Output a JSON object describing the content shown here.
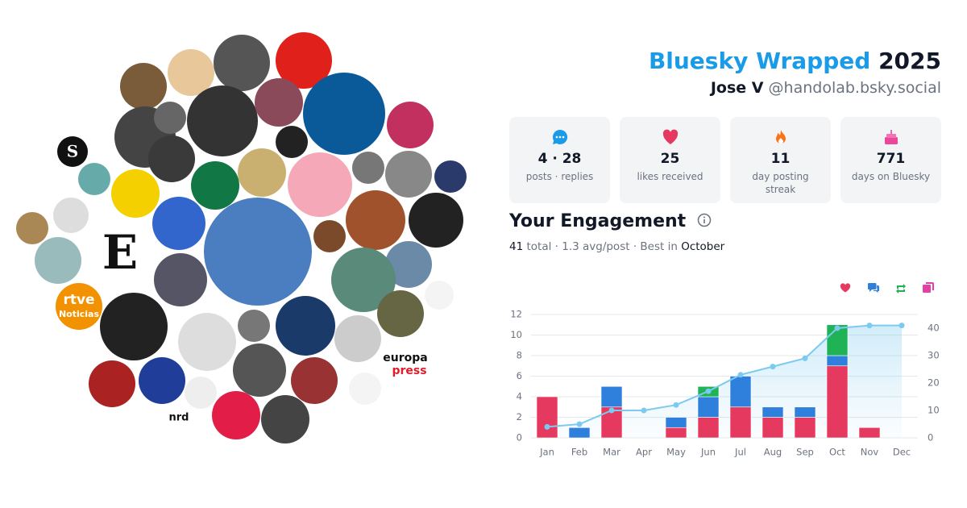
{
  "header": {
    "title": "Bluesky Wrapped",
    "year": "2025",
    "name": "Jose V",
    "handle": "@handolab.bsky.social"
  },
  "stats": [
    {
      "value": "4 · 28",
      "label": "posts · replies"
    },
    {
      "value": "25",
      "label": "likes received"
    },
    {
      "value": "11",
      "label": "day posting streak"
    },
    {
      "value": "771",
      "label": "days on Bluesky"
    }
  ],
  "engagement": {
    "title": "Your Engagement",
    "total": "41",
    "total_label": "total · 1.3 avg/post · Best in",
    "best": "October"
  },
  "logos": [
    "S",
    "E",
    "rtve",
    "Noticias",
    "europa",
    "press",
    "nrd"
  ],
  "chart_data": {
    "type": "bar",
    "stacked": true,
    "categories": [
      "Jan",
      "Feb",
      "Mar",
      "Apr",
      "May",
      "Jun",
      "Jul",
      "Aug",
      "Sep",
      "Oct",
      "Nov",
      "Dec"
    ],
    "series": [
      {
        "color": "#e5395f",
        "values": [
          4,
          0,
          3,
          0,
          1,
          2,
          3,
          2,
          2,
          7,
          1,
          0
        ]
      },
      {
        "color": "#2f80dd",
        "values": [
          0,
          1,
          2,
          0,
          1,
          2,
          3,
          1,
          1,
          1,
          0,
          0
        ]
      },
      {
        "color": "#1fb356",
        "values": [
          0,
          0,
          0,
          0,
          0,
          1,
          0,
          0,
          0,
          3,
          0,
          0
        ]
      },
      {
        "color": "#e33fa6",
        "values": [
          0,
          0,
          0,
          0,
          0,
          0,
          0,
          0,
          0,
          0,
          0,
          0
        ]
      },
      {
        "type": "line",
        "axis": "y2",
        "color": "#7ccaf0",
        "values": [
          4,
          5,
          10,
          10,
          12,
          17,
          23,
          26,
          29,
          40,
          41,
          41
        ]
      }
    ],
    "ylim": [
      0,
      12
    ],
    "yticks": [
      0,
      2,
      4,
      6,
      8,
      10,
      12
    ],
    "y2lim": [
      0,
      45
    ],
    "y2ticks": [
      0,
      10,
      20,
      30,
      40
    ],
    "grid": true
  }
}
